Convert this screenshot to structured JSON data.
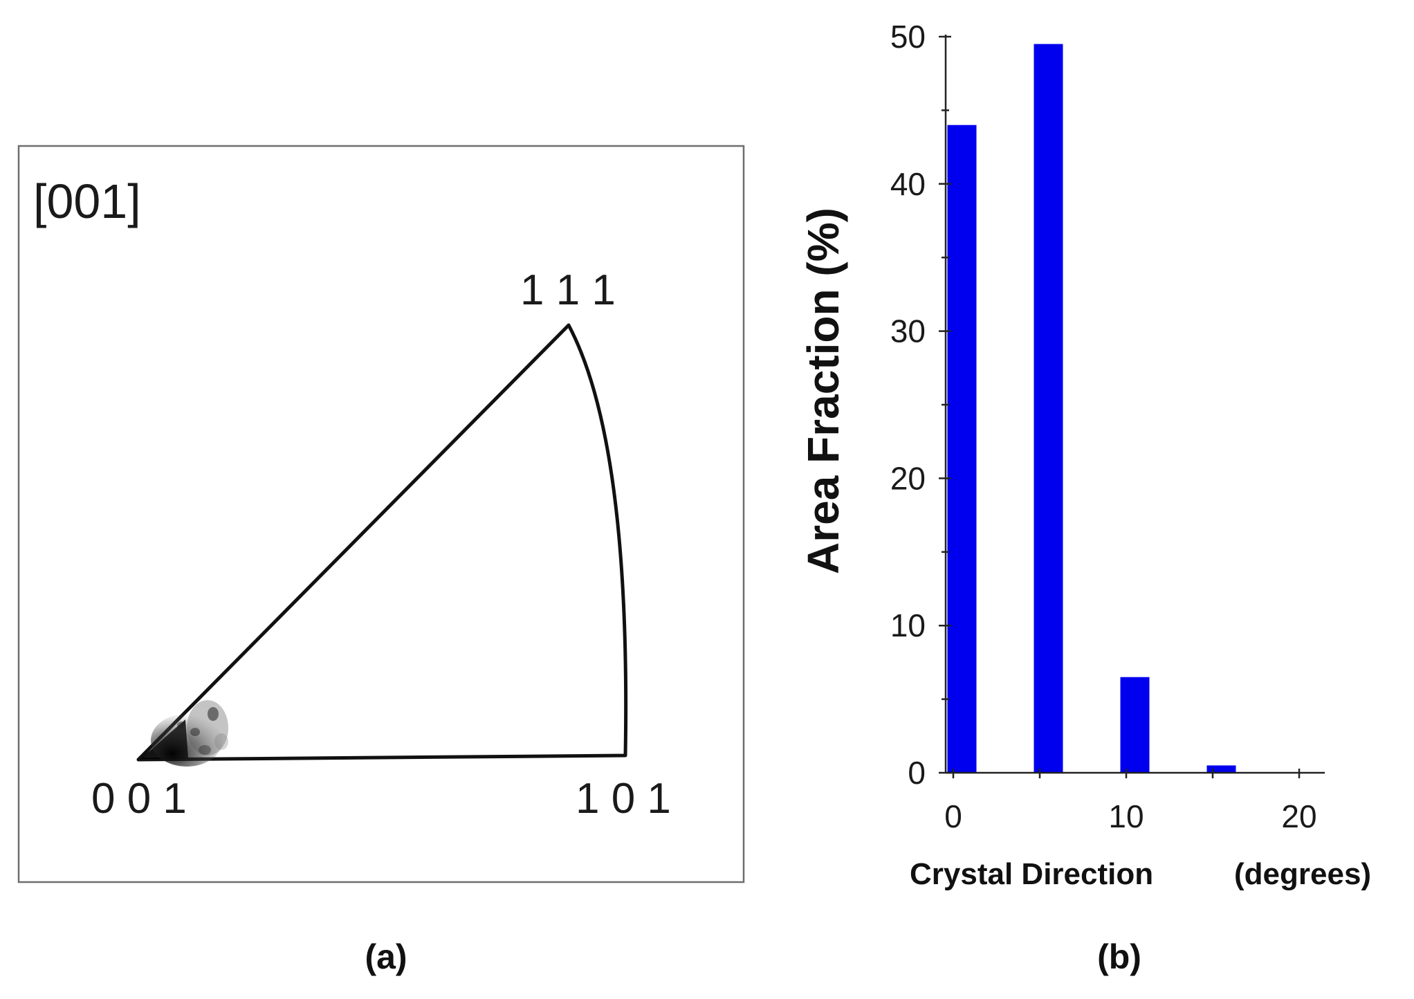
{
  "panel_a": {
    "direction": "[001]",
    "pole_001": "0 0 1",
    "pole_101": "1 0 1",
    "pole_111": "1 1 1",
    "caption": "(a)"
  },
  "panel_b": {
    "caption": "(b)"
  },
  "chart_data": {
    "type": "bar",
    "title": "",
    "xlabel": "Crystal Direction",
    "xlabel_unit": "(degrees)",
    "ylabel": "Area Fraction (%)",
    "xlim": [
      0,
      20
    ],
    "ylim": [
      0,
      50
    ],
    "x_ticks": [
      "0",
      "10",
      "20"
    ],
    "y_ticks": [
      "0",
      "10",
      "20",
      "30",
      "40",
      "50"
    ],
    "bar_color": "#0000ee",
    "x": [
      0.5,
      5.5,
      10.5,
      15.5
    ],
    "values": [
      44,
      49.5,
      6.5,
      0.5
    ],
    "grid": false
  }
}
